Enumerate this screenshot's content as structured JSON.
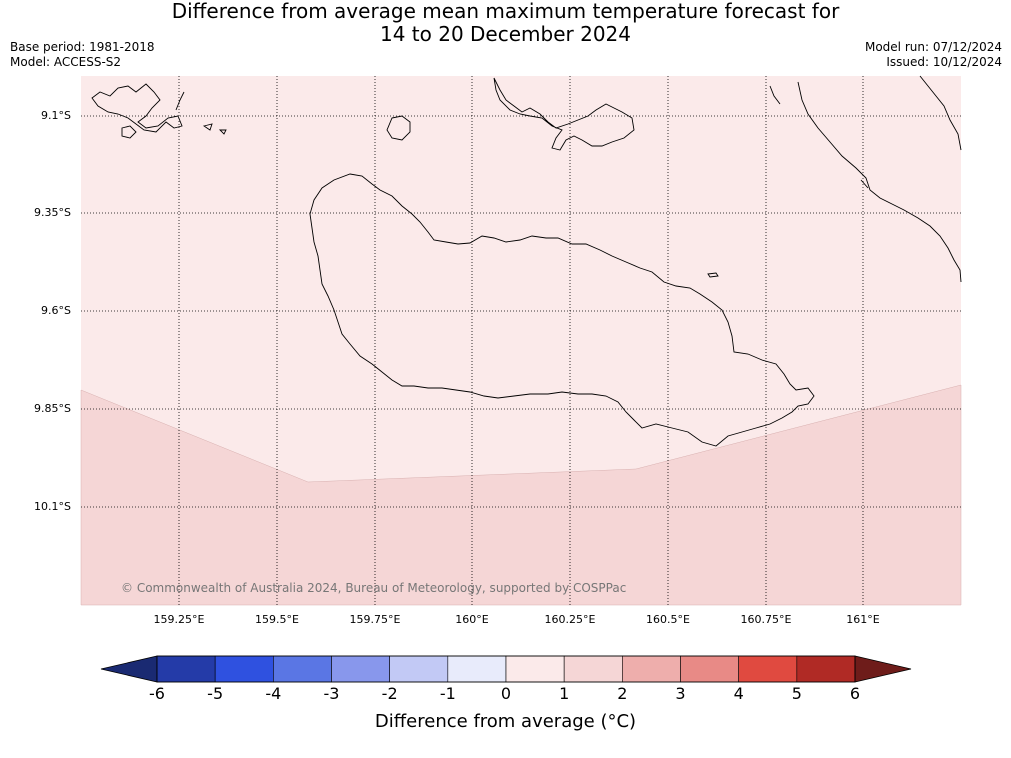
{
  "title": {
    "line1": "Difference from average mean maximum temperature forecast for",
    "line2": "14 to 20 December 2024"
  },
  "meta": {
    "base_period": "Base period: 1981-2018",
    "model": "Model: ACCESS-S2",
    "model_run": "Model run: 07/12/2024",
    "issued": "Issued: 10/12/2024"
  },
  "map": {
    "lat_labels": [
      "9.1°S",
      "9.35°S",
      "9.6°S",
      "9.85°S",
      "10.1°S"
    ],
    "lon_labels": [
      "159.25°E",
      "159.5°E",
      "159.75°E",
      "160°E",
      "160.25°E",
      "160.5°E",
      "160.75°E",
      "161°E"
    ],
    "zones": [
      {
        "range": "0 to 1",
        "color": "#fbeaea"
      },
      {
        "range": "1 to 2",
        "color": "#f5d6d6"
      }
    ],
    "coastline_color": "#000000",
    "gridline_style": "dotted",
    "copyright": "© Commonwealth of Australia 2024, Bureau of Meteorology, supported by COSPPac"
  },
  "colorbar": {
    "ticks": [
      "-6",
      "-5",
      "-4",
      "-3",
      "-2",
      "-1",
      "0",
      "1",
      "2",
      "3",
      "4",
      "5",
      "6"
    ],
    "under_color": "#1a2a72",
    "over_color": "#6e1c1a",
    "colors": [
      "#243ba8",
      "#2f51e0",
      "#5a76e4",
      "#8897ec",
      "#c2c9f5",
      "#e8ebfb",
      "#fbeaea",
      "#f5d6d6",
      "#eeaeac",
      "#e88a86",
      "#e04a40",
      "#b02a25"
    ],
    "title": "Difference from average (°C)"
  }
}
